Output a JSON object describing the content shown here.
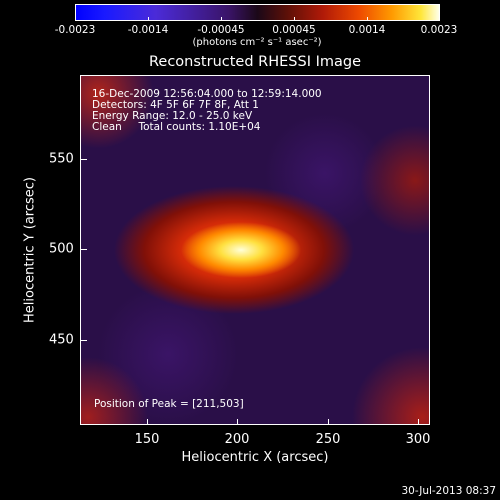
{
  "colorbar": {
    "tick_labels": [
      "-0.0023",
      "-0.0014",
      "-0.00045",
      "0.00045",
      "0.0014",
      "0.0023"
    ],
    "units_text": "(photons cm",
    "units_full": "(photons cm⁻² s⁻¹ asec⁻²)"
  },
  "plot": {
    "title": "Reconstructed RHESSI Image",
    "info_lines": [
      "16-Dec-2009 12:56:04.000 to 12:59:14.000",
      "Detectors: 4F 5F 6F 7F 8F, Att 1",
      "Energy Range: 12.0 - 25.0 keV",
      "Clean     Total counts: 1.10E+04"
    ],
    "peak_text": "Position of Peak = [211,503]",
    "x_ticks": [
      "150",
      "200",
      "250",
      "300"
    ],
    "y_ticks": [
      "550",
      "500",
      "450"
    ],
    "x_title": "Heliocentric X (arcsec)",
    "y_title": "Heliocentric Y (arcsec)"
  },
  "footer": {
    "date": "30-Jul-2013 08:37"
  }
}
